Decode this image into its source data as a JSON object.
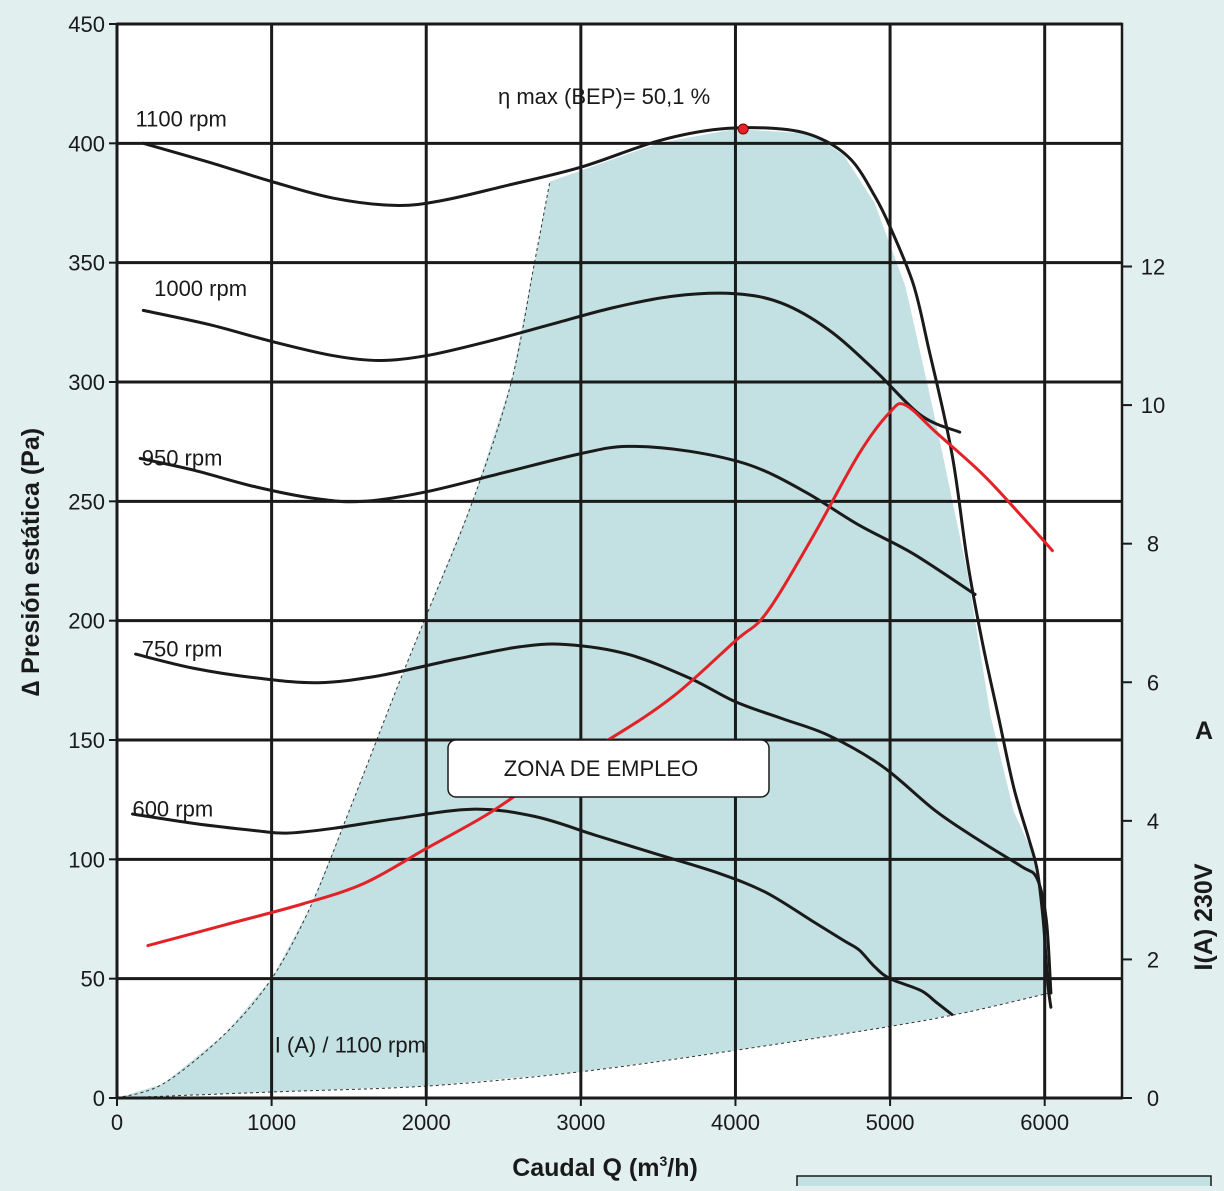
{
  "colors": {
    "background": "#e2efef",
    "zone_fill": "#c3e0e2",
    "curve": "#1a1a1a",
    "current_curve": "#e32227",
    "bep_marker": "#e32227",
    "grid": "#1a1a1a"
  },
  "chart_data": {
    "type": "line",
    "xlabel_main": "Caudal Q (m",
    "xlabel_sup": "3",
    "xlabel_end": "/h)",
    "ylabel_left": "∆ Presión estática (Pa)",
    "ylabel_right": "I(A) 230V",
    "right_unit": "A",
    "xlim": [
      0,
      6500
    ],
    "ylim": [
      0,
      450
    ],
    "y2lim": [
      0,
      15.5
    ],
    "grid": true,
    "x_ticks": [
      "0",
      "1000",
      "2000",
      "3000",
      "4000",
      "5000",
      "6000"
    ],
    "y_ticks": [
      "0",
      "50",
      "100",
      "150",
      "200",
      "250",
      "300",
      "350",
      "400",
      "450"
    ],
    "y2_ticks": [
      "0",
      "2",
      "4",
      "6",
      "8",
      "10",
      "12"
    ],
    "bep": {
      "label": "η max (BEP)= 50,1 %",
      "x": 4050,
      "y": 406
    },
    "zone_label": "ZONA DE EMPLEO",
    "zone_polygon": [
      [
        0,
        0
      ],
      [
        300,
        6
      ],
      [
        700,
        27
      ],
      [
        1000,
        50
      ],
      [
        1250,
        80
      ],
      [
        1500,
        120
      ],
      [
        1800,
        170
      ],
      [
        2000,
        202
      ],
      [
        2300,
        250
      ],
      [
        2550,
        300
      ],
      [
        2700,
        350
      ],
      [
        2800,
        384
      ],
      [
        3500,
        400
      ],
      [
        4000,
        406
      ],
      [
        4500,
        404
      ],
      [
        4700,
        395
      ],
      [
        4900,
        375
      ],
      [
        5100,
        340
      ],
      [
        5300,
        282
      ],
      [
        5500,
        220
      ],
      [
        5650,
        160
      ],
      [
        5800,
        120
      ],
      [
        5940,
        100
      ],
      [
        6000,
        75
      ],
      [
        6030,
        44
      ],
      [
        5500,
        36
      ],
      [
        5000,
        30
      ],
      [
        4000,
        20
      ],
      [
        3000,
        11
      ],
      [
        2000,
        5
      ],
      [
        1000,
        2.5
      ],
      [
        0,
        0
      ]
    ],
    "series": [
      {
        "name": "1100 rpm",
        "axis": "left",
        "values": [
          [
            170,
            400
          ],
          [
            600,
            392
          ],
          [
            1000,
            384
          ],
          [
            1400,
            377
          ],
          [
            1800,
            374
          ],
          [
            2100,
            376
          ],
          [
            2500,
            382
          ],
          [
            3000,
            390
          ],
          [
            3500,
            401
          ],
          [
            3900,
            406
          ],
          [
            4300,
            406
          ],
          [
            4550,
            402
          ],
          [
            4750,
            393
          ],
          [
            4900,
            378
          ],
          [
            5000,
            365
          ],
          [
            5150,
            341
          ],
          [
            5250,
            314
          ],
          [
            5400,
            270
          ],
          [
            5500,
            225
          ],
          [
            5600,
            190
          ],
          [
            5700,
            160
          ],
          [
            5800,
            130
          ],
          [
            5900,
            108
          ],
          [
            5950,
            96
          ],
          [
            5990,
            75
          ],
          [
            6020,
            48
          ],
          [
            6040,
            38
          ]
        ]
      },
      {
        "name": "1000 rpm",
        "axis": "left",
        "values": [
          [
            170,
            330
          ],
          [
            600,
            324
          ],
          [
            1000,
            317
          ],
          [
            1400,
            311
          ],
          [
            1700,
            309
          ],
          [
            2000,
            311
          ],
          [
            2400,
            317
          ],
          [
            2800,
            324
          ],
          [
            3200,
            331
          ],
          [
            3600,
            336
          ],
          [
            4000,
            337
          ],
          [
            4300,
            333
          ],
          [
            4600,
            322
          ],
          [
            4900,
            305
          ],
          [
            5200,
            286
          ],
          [
            5450,
            279
          ]
        ]
      },
      {
        "name": "950 rpm",
        "axis": "left",
        "values": [
          [
            150,
            268
          ],
          [
            500,
            263
          ],
          [
            900,
            256
          ],
          [
            1300,
            251
          ],
          [
            1600,
            250
          ],
          [
            2000,
            254
          ],
          [
            2500,
            262
          ],
          [
            3000,
            270
          ],
          [
            3300,
            273
          ],
          [
            3700,
            271
          ],
          [
            4100,
            265
          ],
          [
            4450,
            254
          ],
          [
            4800,
            240
          ],
          [
            5150,
            228
          ],
          [
            5550,
            211
          ]
        ]
      },
      {
        "name": "750 rpm",
        "axis": "left",
        "values": [
          [
            120,
            186
          ],
          [
            500,
            180
          ],
          [
            900,
            176
          ],
          [
            1300,
            174
          ],
          [
            1700,
            177
          ],
          [
            2200,
            184
          ],
          [
            2600,
            189
          ],
          [
            2900,
            190
          ],
          [
            3300,
            186
          ],
          [
            3700,
            176
          ],
          [
            4000,
            166
          ],
          [
            4300,
            159
          ],
          [
            4600,
            152
          ],
          [
            4950,
            139
          ],
          [
            5300,
            120
          ],
          [
            5600,
            107
          ],
          [
            5850,
            97
          ],
          [
            5950,
            92
          ],
          [
            6010,
            75
          ],
          [
            6040,
            44
          ]
        ]
      },
      {
        "name": "600 rpm",
        "axis": "left",
        "values": [
          [
            100,
            119
          ],
          [
            500,
            115
          ],
          [
            900,
            112
          ],
          [
            1100,
            111
          ],
          [
            1400,
            113
          ],
          [
            1800,
            117
          ],
          [
            2300,
            121
          ],
          [
            2700,
            118
          ],
          [
            3100,
            110
          ],
          [
            3500,
            102
          ],
          [
            3900,
            94
          ],
          [
            4200,
            86
          ],
          [
            4500,
            74
          ],
          [
            4700,
            66
          ],
          [
            4800,
            62
          ],
          [
            4900,
            55
          ],
          [
            5000,
            50
          ],
          [
            5200,
            45
          ],
          [
            5300,
            40
          ],
          [
            5400,
            35
          ]
        ]
      },
      {
        "name": "I (A) / 1100 rpm",
        "axis": "right",
        "values": [
          [
            200,
            2.2
          ],
          [
            700,
            2.5
          ],
          [
            1200,
            2.8
          ],
          [
            1600,
            3.1
          ],
          [
            2000,
            3.6
          ],
          [
            2400,
            4.1
          ],
          [
            2800,
            4.7
          ],
          [
            3200,
            5.2
          ],
          [
            3600,
            5.8
          ],
          [
            4000,
            6.6
          ],
          [
            4200,
            7.0
          ],
          [
            4500,
            8.1
          ],
          [
            4800,
            9.3
          ],
          [
            5000,
            9.9
          ],
          [
            5100,
            10.0
          ],
          [
            5300,
            9.6
          ],
          [
            5600,
            9.0
          ],
          [
            5850,
            8.4
          ],
          [
            6050,
            7.9
          ]
        ]
      }
    ],
    "annotations": [
      {
        "text": "1100 rpm",
        "x": 120,
        "y": 407
      },
      {
        "text": "1000 rpm",
        "x": 240,
        "y": 336
      },
      {
        "text": "950 rpm",
        "x": 160,
        "y": 265
      },
      {
        "text": "750 rpm",
        "x": 160,
        "y": 185
      },
      {
        "text": "600 rpm",
        "x": 100,
        "y": 118
      },
      {
        "text": "I (A) / 1100 rpm",
        "x": 1020,
        "y": 19
      }
    ]
  }
}
